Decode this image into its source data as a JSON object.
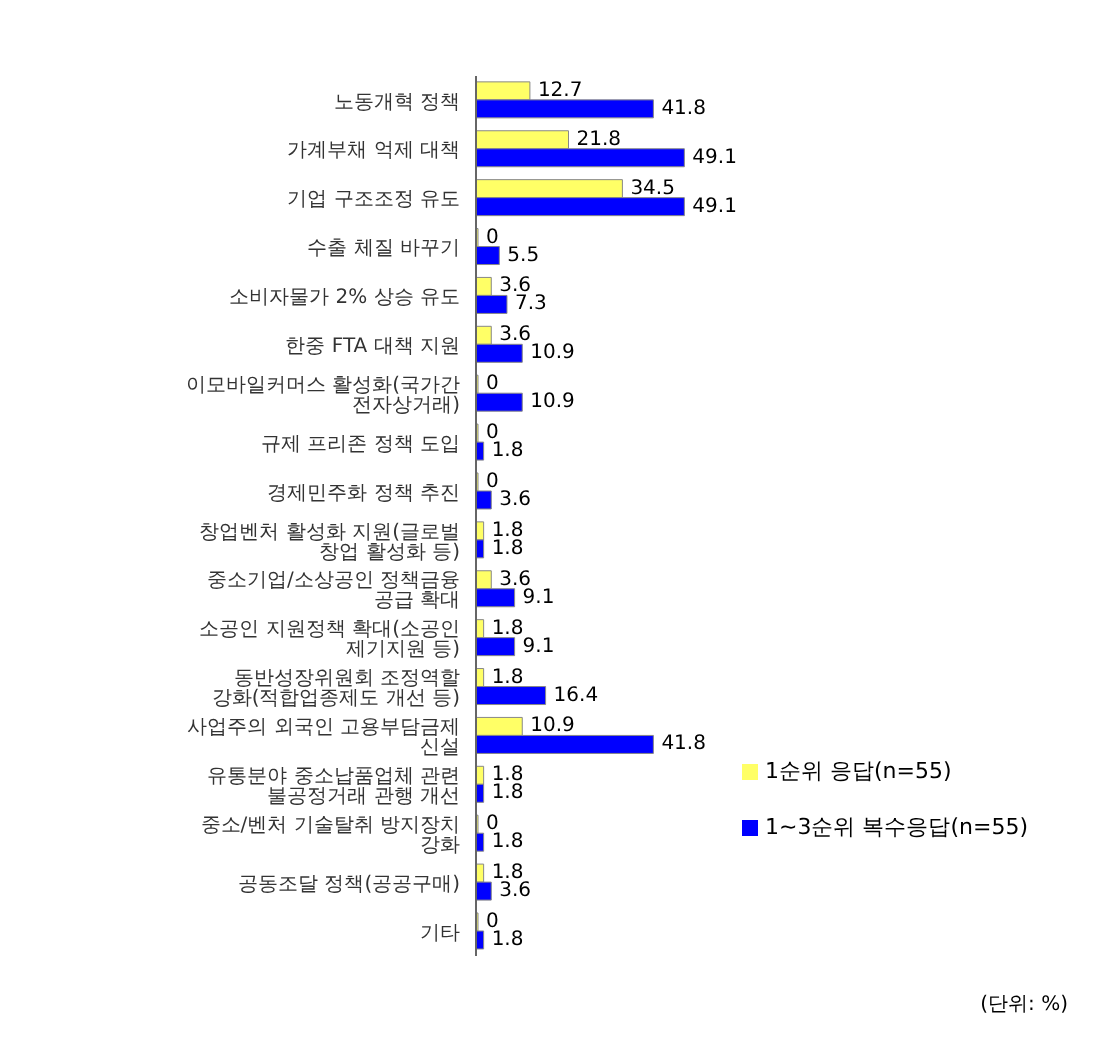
{
  "chart_data": {
    "type": "bar",
    "orientation": "horizontal",
    "categories": [
      "노동개혁 정책",
      "가계부채 억제 대책",
      "기업 구조조정 유도",
      "수출 체질 바꾸기",
      "소비자물가 2% 상승 유도",
      "한중 FTA 대책 지원",
      "이모바일커머스 활성화(국가간 전자상거래)",
      "규제 프리존 정책 도입",
      "경제민주화 정책 추진",
      "창업벤처 활성화 지원(글로벌 창업 활성화 등)",
      "중소기업/소상공인 정책금융 공급 확대",
      "소공인 지원정책 확대(소공인 제기지원 등)",
      "동반성장위원회 조정역할 강화(적합업종제도 개선 등)",
      "사업주의 외국인 고용부담금제 신설",
      "유통분야 중소납품업체 관련 불공정거래 관행 개선",
      "중소/벤처 기술탈취 방지장치 강화",
      "공동조달 정책(공공구매)",
      "기타"
    ],
    "series": [
      {
        "name": "1순위 응답(n=55)",
        "color": "#ffff66",
        "values": [
          12.7,
          21.8,
          34.5,
          0,
          3.6,
          3.6,
          0,
          0,
          0,
          1.8,
          3.6,
          1.8,
          1.8,
          10.9,
          1.8,
          0,
          1.8,
          0
        ]
      },
      {
        "name": "1~3순위 복수응답(n=55)",
        "color": "#0000ff",
        "values": [
          41.8,
          49.1,
          49.1,
          5.5,
          7.3,
          10.9,
          10.9,
          1.8,
          3.6,
          1.8,
          9.1,
          9.1,
          16.4,
          41.8,
          1.8,
          1.8,
          3.6,
          1.8
        ]
      }
    ],
    "data_labels": true,
    "legend": "bottom right",
    "annotations": [
      "(단위: %)"
    ]
  }
}
